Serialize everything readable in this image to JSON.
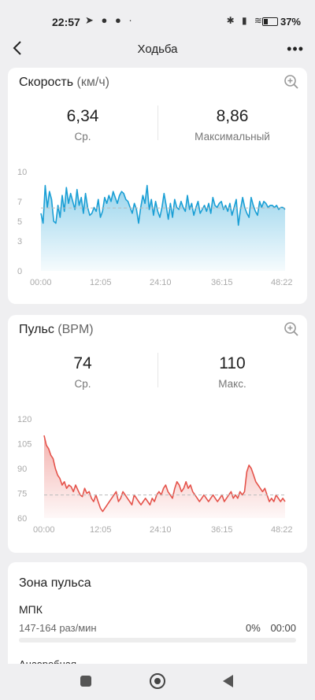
{
  "status_bar": {
    "time": "22:57",
    "battery": "37%"
  },
  "header": {
    "title": "Ходьба"
  },
  "speed": {
    "title": "Скорость",
    "unit": "(км/ч)",
    "avg_value": "6,34",
    "avg_label": "Ср.",
    "max_value": "8,86",
    "max_label": "Максимальный"
  },
  "pulse": {
    "title": "Пульс",
    "unit": "(BPM)",
    "avg_value": "74",
    "avg_label": "Ср.",
    "max_value": "110",
    "max_label": "Макс."
  },
  "zones": {
    "title": "Зона пульса",
    "items": [
      {
        "name": "МПК",
        "range": "147-164 раз/мин",
        "percent": "0%",
        "time": "00:00",
        "fraction": 0
      },
      {
        "name": "Анаэробная"
      }
    ]
  },
  "chart_data": [
    {
      "type": "area",
      "color": "#1a9fd5",
      "x_ticks": [
        "00:00",
        "12:05",
        "24:10",
        "36:15",
        "48:22"
      ],
      "y_ticks": [
        "0",
        "3",
        "5",
        "7",
        "10"
      ],
      "ylim": [
        0,
        10
      ],
      "avg_line": 6.34,
      "values": [
        5.8,
        4.8,
        8.6,
        6.4,
        8.0,
        7.2,
        5.0,
        4.8,
        6.6,
        5.4,
        7.6,
        6.0,
        8.4,
        6.8,
        7.8,
        7.0,
        6.2,
        8.2,
        6.6,
        7.4,
        5.8,
        7.8,
        6.4,
        5.6,
        5.8,
        6.4,
        6.0,
        7.2,
        5.4,
        6.0,
        7.4,
        6.8,
        7.6,
        7.0,
        8.0,
        7.4,
        6.8,
        7.6,
        8.0,
        7.8,
        7.2,
        7.0,
        6.4,
        5.8,
        6.8,
        6.2,
        4.8,
        6.4,
        7.6,
        6.8,
        8.6,
        6.2,
        7.2,
        5.6,
        7.0,
        6.0,
        5.4,
        6.4,
        7.8,
        6.6,
        5.2,
        6.8,
        5.4,
        7.2,
        6.4,
        6.2,
        7.0,
        6.4,
        6.0,
        7.6,
        6.2,
        6.8,
        5.6,
        6.4,
        7.0,
        5.8,
        6.2,
        6.6,
        6.0,
        6.8,
        5.8,
        7.4,
        6.6,
        6.4,
        6.8,
        7.0,
        6.2,
        6.6,
        6.0,
        6.8,
        5.6,
        6.4,
        7.2,
        4.6,
        6.2,
        7.4,
        6.4,
        5.8,
        5.4,
        7.4,
        6.6,
        6.0,
        5.6,
        7.0,
        6.4,
        7.0,
        6.8,
        6.4,
        6.6,
        6.6,
        6.4,
        6.6,
        6.2,
        6.4,
        6.4,
        6.2
      ]
    },
    {
      "type": "area",
      "color": "#e5534b",
      "x_ticks": [
        "00:00",
        "12:05",
        "24:10",
        "36:15",
        "48:22"
      ],
      "y_ticks": [
        "60",
        "75",
        "90",
        "105",
        "120"
      ],
      "ylim": [
        60,
        120
      ],
      "avg_line": 74,
      "values": [
        110,
        104,
        102,
        98,
        96,
        90,
        86,
        84,
        80,
        82,
        78,
        80,
        79,
        76,
        80,
        77,
        74,
        73,
        78,
        75,
        76,
        72,
        70,
        74,
        70,
        66,
        64,
        66,
        68,
        70,
        72,
        74,
        76,
        70,
        72,
        76,
        74,
        72,
        70,
        68,
        74,
        72,
        70,
        68,
        70,
        72,
        70,
        68,
        72,
        70,
        74,
        76,
        74,
        78,
        80,
        76,
        74,
        72,
        78,
        82,
        80,
        76,
        78,
        82,
        78,
        80,
        76,
        74,
        72,
        70,
        72,
        74,
        72,
        70,
        72,
        74,
        72,
        70,
        72,
        74,
        70,
        72,
        74,
        76,
        72,
        74,
        72,
        76,
        74,
        76,
        88,
        92,
        90,
        86,
        82,
        80,
        78,
        76,
        78,
        74,
        70,
        72,
        70,
        74,
        72,
        70,
        72,
        70
      ]
    }
  ]
}
